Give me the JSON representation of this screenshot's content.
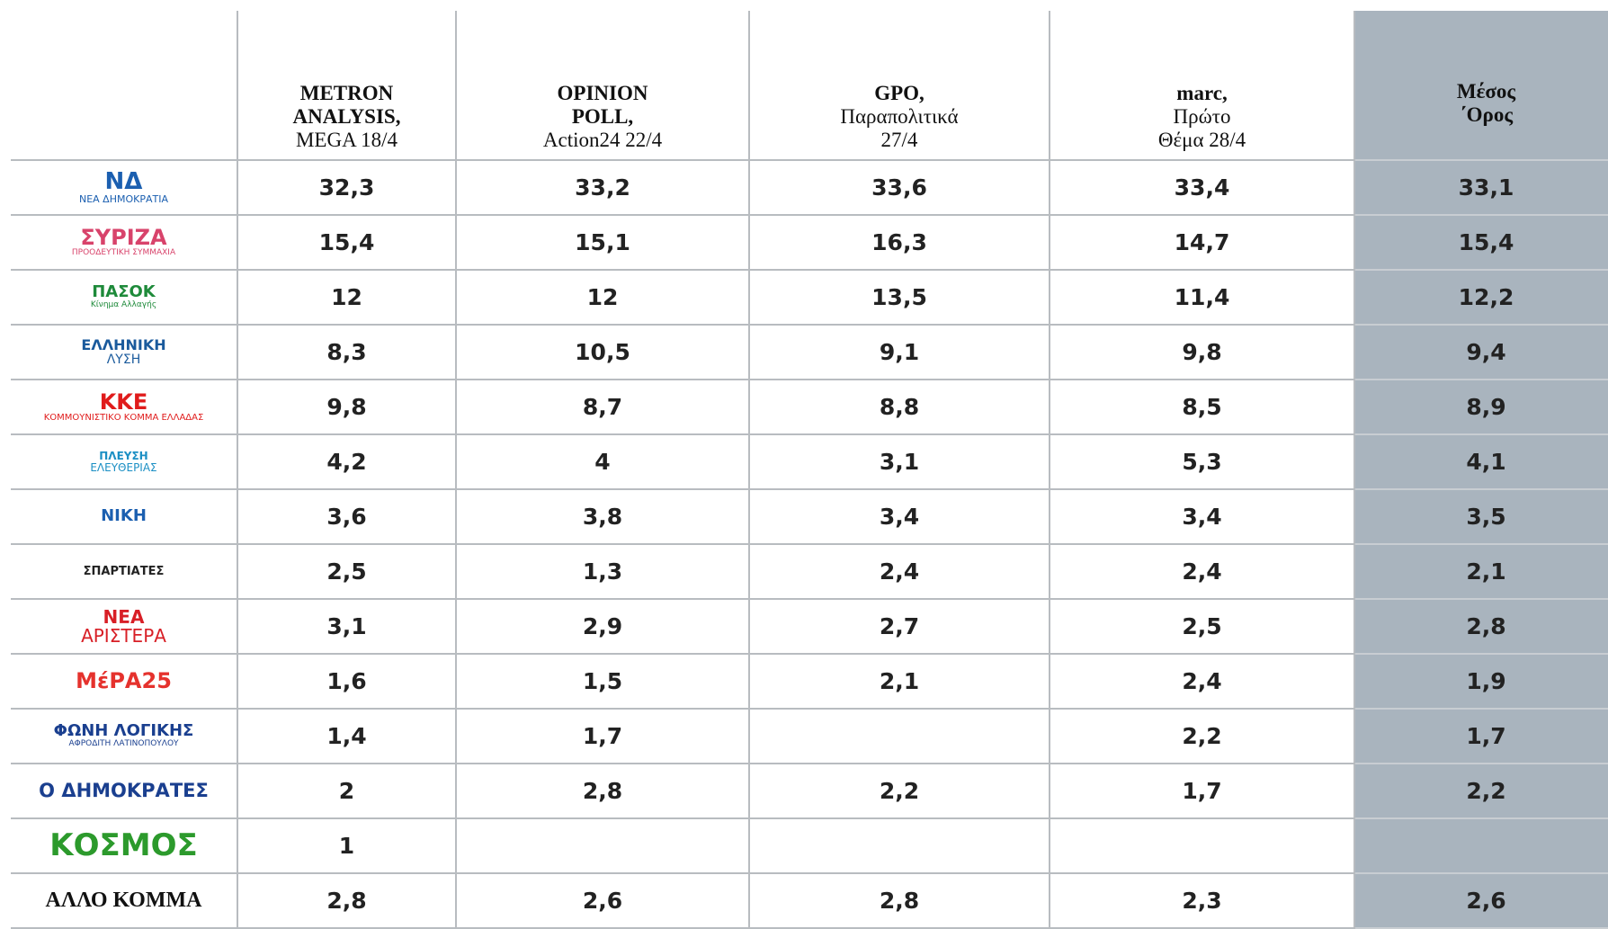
{
  "table": {
    "header": [
      {
        "bold": [
          "METRON",
          "ANALYSIS,"
        ],
        "normal": [
          "MEGA 18/4"
        ]
      },
      {
        "bold": [
          "OPINION",
          "POLL,"
        ],
        "normal": [
          "Action24 22/4"
        ]
      },
      {
        "bold": [
          "GPO,"
        ],
        "normal": [
          "Παραπολιτικά",
          "27/4"
        ]
      },
      {
        "bold": [
          "marc,"
        ],
        "normal": [
          "Πρώτο",
          "Θέμα 28/4"
        ]
      },
      {
        "bold": [
          "Μέσος",
          "΄Ορος"
        ],
        "normal": []
      }
    ],
    "rows": [
      {
        "party": [
          "ΝΔ",
          "ΝΕΑ ΔΗΜΟΚΡΑΤΙΑ"
        ],
        "values": [
          "32,3",
          "33,2",
          "33,6",
          "33,4",
          "33,1"
        ]
      },
      {
        "party": [
          "ΣΥΡΙΖΑ",
          "ΠΡΟΟΔΕΥΤΙΚΗ ΣΥΜΜΑΧΙΑ"
        ],
        "values": [
          "15,4",
          "15,1",
          "16,3",
          "14,7",
          "15,4"
        ]
      },
      {
        "party": [
          "ΠΑΣΟΚ",
          "Κίνημα Αλλαγής"
        ],
        "values": [
          "12",
          "12",
          "13,5",
          "11,4",
          "12,2"
        ]
      },
      {
        "party": [
          "ΕΛΛΗΝΙΚΗ",
          "ΛΥΣΗ"
        ],
        "values": [
          "8,3",
          "10,5",
          "9,1",
          "9,8",
          "9,4"
        ]
      },
      {
        "party": [
          "ΚΚΕ",
          "ΚΟΜΜΟΥΝΙΣΤΙΚΟ ΚΟΜΜΑ ΕΛΛΑΔΑΣ"
        ],
        "values": [
          "9,8",
          "8,7",
          "8,8",
          "8,5",
          "8,9"
        ]
      },
      {
        "party": [
          "ΠΛΕΥΣΗ",
          "ΕΛΕΥΘΕΡΙΑΣ"
        ],
        "values": [
          "4,2",
          "4",
          "3,1",
          "5,3",
          "4,1"
        ]
      },
      {
        "party": [
          "ΝΙΚΗ"
        ],
        "values": [
          "3,6",
          "3,8",
          "3,4",
          "3,4",
          "3,5"
        ]
      },
      {
        "party": [
          "ΣΠΑΡΤΙΑΤΕΣ"
        ],
        "values": [
          "2,5",
          "1,3",
          "2,4",
          "2,4",
          "2,1"
        ]
      },
      {
        "party": [
          "ΝΕΑ",
          "ΑΡΙΣΤΕΡΑ"
        ],
        "values": [
          "3,1",
          "2,9",
          "2,7",
          "2,5",
          "2,8"
        ]
      },
      {
        "party": [
          "ΜέΡΑ25"
        ],
        "values": [
          "1,6",
          "1,5",
          "2,1",
          "2,4",
          "1,9"
        ]
      },
      {
        "party": [
          "ΦΩΝΗ ΛΟΓΙΚΗΣ",
          "ΑΦΡΟΔΙΤΗ ΛΑΤΙΝΟΠΟΥΛΟΥ"
        ],
        "values": [
          "1,4",
          "1,7",
          null,
          "2,2",
          "1,7"
        ]
      },
      {
        "party": [
          "Ο ΔΗΜΟΚΡΑΤΕΣ"
        ],
        "values": [
          "2",
          "2,8",
          "2,2",
          "1,7",
          "2,2"
        ]
      },
      {
        "party": [
          "ΚΟΣΜΟΣ"
        ],
        "values": [
          "1",
          null,
          null,
          null,
          null
        ]
      },
      {
        "party": [
          "ΑΛΛΟ ΚΟΜΜΑ"
        ],
        "values": [
          "2,8",
          "2,6",
          "2,8",
          "2,3",
          "2,6"
        ]
      }
    ]
  }
}
